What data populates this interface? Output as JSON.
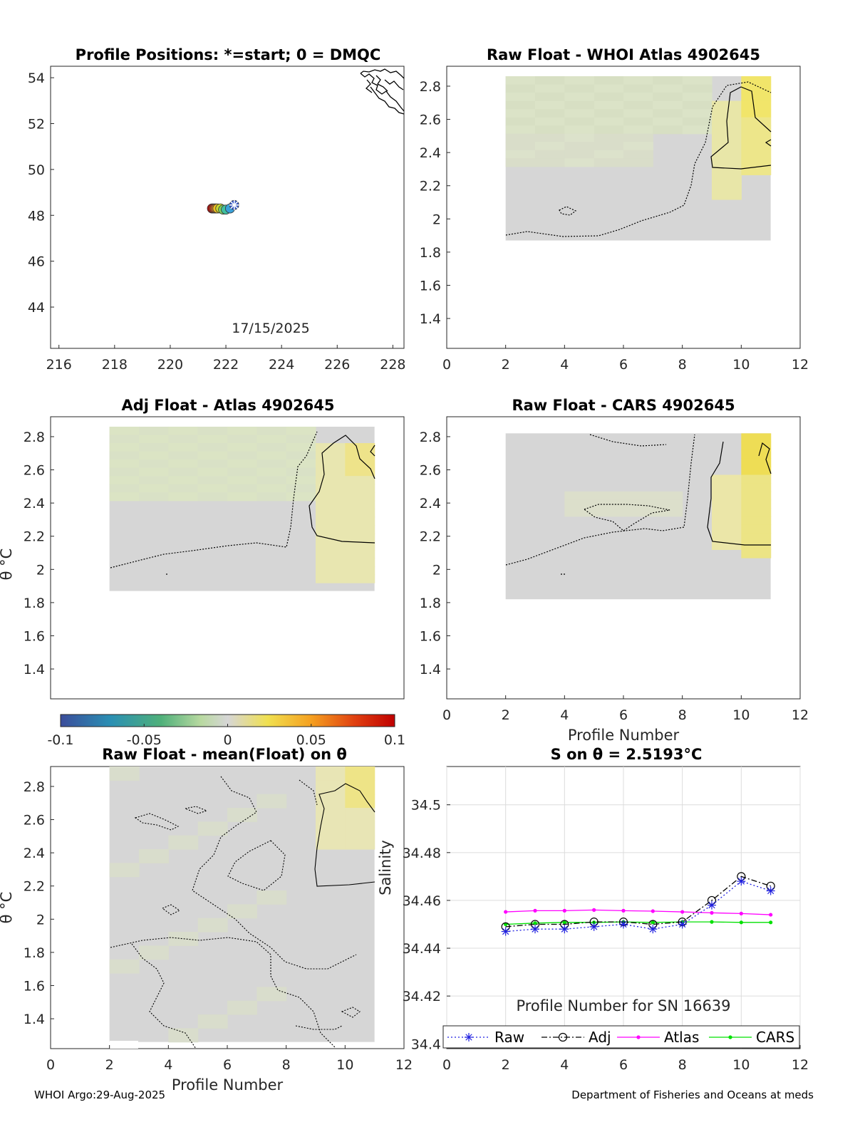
{
  "footer": {
    "left": "WHOI Argo:29-Aug-2025",
    "right": "Department of Fisheries and Oceans at meds"
  },
  "panels": {
    "positions": {
      "title": "Profile Positions: *=start; 0 = DMQC",
      "annotation": "17/15/2025"
    },
    "whoi_atlas": {
      "title": "Raw Float - WHOI Atlas  4902645"
    },
    "adj_atlas": {
      "title": "Adj Float - Atlas  4902645",
      "ylabel": "θ °C"
    },
    "cars": {
      "title": "Raw Float - CARS  4902645",
      "xlabel": "Profile Number"
    },
    "mean": {
      "title": "Raw Float - mean(Float) on θ",
      "ylabel": "θ °C",
      "xlabel": "Profile Number"
    },
    "salinity": {
      "title": "S on θ = 2.5193°C",
      "ylabel": "Salinity",
      "xlabel": "Profile Number for SN 16639"
    }
  },
  "colorbar": {
    "ticks": [
      "-0.1",
      "-0.05",
      "0",
      "0.05",
      "0.1"
    ],
    "range": [
      -0.1,
      0.1
    ],
    "colors": [
      "#3b4d9b",
      "#2a8fb3",
      "#4fb07a",
      "#b8d9a0",
      "#d6d6d6",
      "#f0e050",
      "#f5a020",
      "#e04010",
      "#c00000"
    ]
  },
  "colors": {
    "raw": "#1f1fe0",
    "adj": "#000000",
    "atlas": "#ff00ff",
    "cars": "#00e000",
    "neutral": "#d6d6d6",
    "green_tint": "#dbe3c7",
    "yellow_tint": "#ede68a"
  },
  "chart_data": [
    {
      "type": "scatter",
      "title": "Profile Positions: *=start; 0 = DMQC",
      "xlim": [
        215.7,
        228.4
      ],
      "ylim": [
        42.2,
        54.5
      ],
      "xticks": [
        216,
        218,
        220,
        222,
        224,
        226,
        228
      ],
      "yticks": [
        44,
        46,
        48,
        50,
        52,
        54
      ],
      "points": {
        "x": [
          222.3,
          222.15,
          222.0,
          221.9,
          221.8,
          221.7,
          221.65,
          221.6,
          221.55,
          221.5
        ],
        "y": [
          48.45,
          48.3,
          48.25,
          48.25,
          48.3,
          48.3,
          48.3,
          48.3,
          48.3,
          48.3
        ],
        "colors": [
          "#3b5cc8",
          "#3aa0d8",
          "#40c0a0",
          "#80d060",
          "#c8d830",
          "#f0c020",
          "#f09020",
          "#f06020",
          "#e03010",
          "#d00000"
        ]
      },
      "start_marker": "*",
      "annotation": "17/15/2025"
    },
    {
      "type": "heatmap",
      "title": "Raw Float - WHOI Atlas  4902645",
      "xlim": [
        0,
        12
      ],
      "ylim": [
        1.22,
        2.92
      ],
      "xticks": [
        0,
        2,
        4,
        6,
        8,
        10,
        12
      ],
      "yticks": [
        1.4,
        1.6,
        1.8,
        2,
        2.2,
        2.4,
        2.6,
        2.8
      ],
      "x_extent": [
        2,
        11
      ],
      "y_extent": [
        1.87,
        2.86
      ]
    },
    {
      "type": "heatmap",
      "title": "Adj Float - Atlas  4902645",
      "ylabel": "θ °C",
      "xlim": [
        0,
        12
      ],
      "ylim": [
        1.22,
        2.92
      ],
      "yticks": [
        1.4,
        1.6,
        1.8,
        2,
        2.2,
        2.4,
        2.6,
        2.8
      ],
      "x_extent": [
        2,
        11
      ],
      "y_extent": [
        1.87,
        2.86
      ]
    },
    {
      "type": "heatmap",
      "title": "Raw Float - CARS  4902645",
      "xlabel": "Profile Number",
      "xlim": [
        0,
        12
      ],
      "ylim": [
        1.22,
        2.92
      ],
      "xticks": [
        0,
        2,
        4,
        6,
        8,
        10,
        12
      ],
      "yticks": [
        1.4,
        1.6,
        1.8,
        2,
        2.2,
        2.4,
        2.6,
        2.8
      ],
      "x_extent": [
        2,
        11
      ],
      "y_extent": [
        1.82,
        2.82
      ]
    },
    {
      "type": "heatmap",
      "title": "Raw Float - mean(Float) on θ",
      "ylabel": "θ °C",
      "xlabel": "Profile Number",
      "xlim": [
        0,
        12
      ],
      "ylim": [
        1.22,
        2.92
      ],
      "xticks": [
        0,
        2,
        4,
        6,
        8,
        10,
        12
      ],
      "yticks": [
        1.4,
        1.6,
        1.8,
        2,
        2.2,
        2.4,
        2.6,
        2.8
      ],
      "x_extent": [
        2,
        11
      ],
      "y_extent": [
        1.26,
        2.92
      ]
    },
    {
      "type": "line",
      "title": "S on θ = 2.5193°C",
      "xlabel": "Profile Number for SN 16639",
      "ylabel": "Salinity",
      "xlim": [
        0,
        12
      ],
      "ylim": [
        34.398,
        34.516
      ],
      "xticks": [
        0,
        2,
        4,
        6,
        8,
        10,
        12
      ],
      "yticks": [
        34.4,
        34.42,
        34.44,
        34.46,
        34.48,
        34.5
      ],
      "grid": true,
      "x": [
        2,
        3,
        4,
        5,
        6,
        7,
        8,
        9,
        10,
        11
      ],
      "series": [
        {
          "name": "Raw",
          "values": [
            34.447,
            34.448,
            34.448,
            34.449,
            34.45,
            34.448,
            34.45,
            34.458,
            34.468,
            34.464
          ]
        },
        {
          "name": "Adj",
          "values": [
            34.449,
            34.45,
            34.45,
            34.451,
            34.451,
            34.45,
            34.451,
            34.46,
            34.47,
            34.466
          ]
        },
        {
          "name": "Atlas",
          "values": [
            34.4552,
            34.4557,
            34.4557,
            34.456,
            34.4557,
            34.4555,
            34.4552,
            34.4548,
            34.4545,
            34.454
          ]
        },
        {
          "name": "CARS",
          "values": [
            34.45,
            34.4505,
            34.4508,
            34.4508,
            34.451,
            34.4508,
            34.451,
            34.451,
            34.4508,
            34.4508
          ]
        }
      ],
      "legend": "bottom"
    }
  ]
}
